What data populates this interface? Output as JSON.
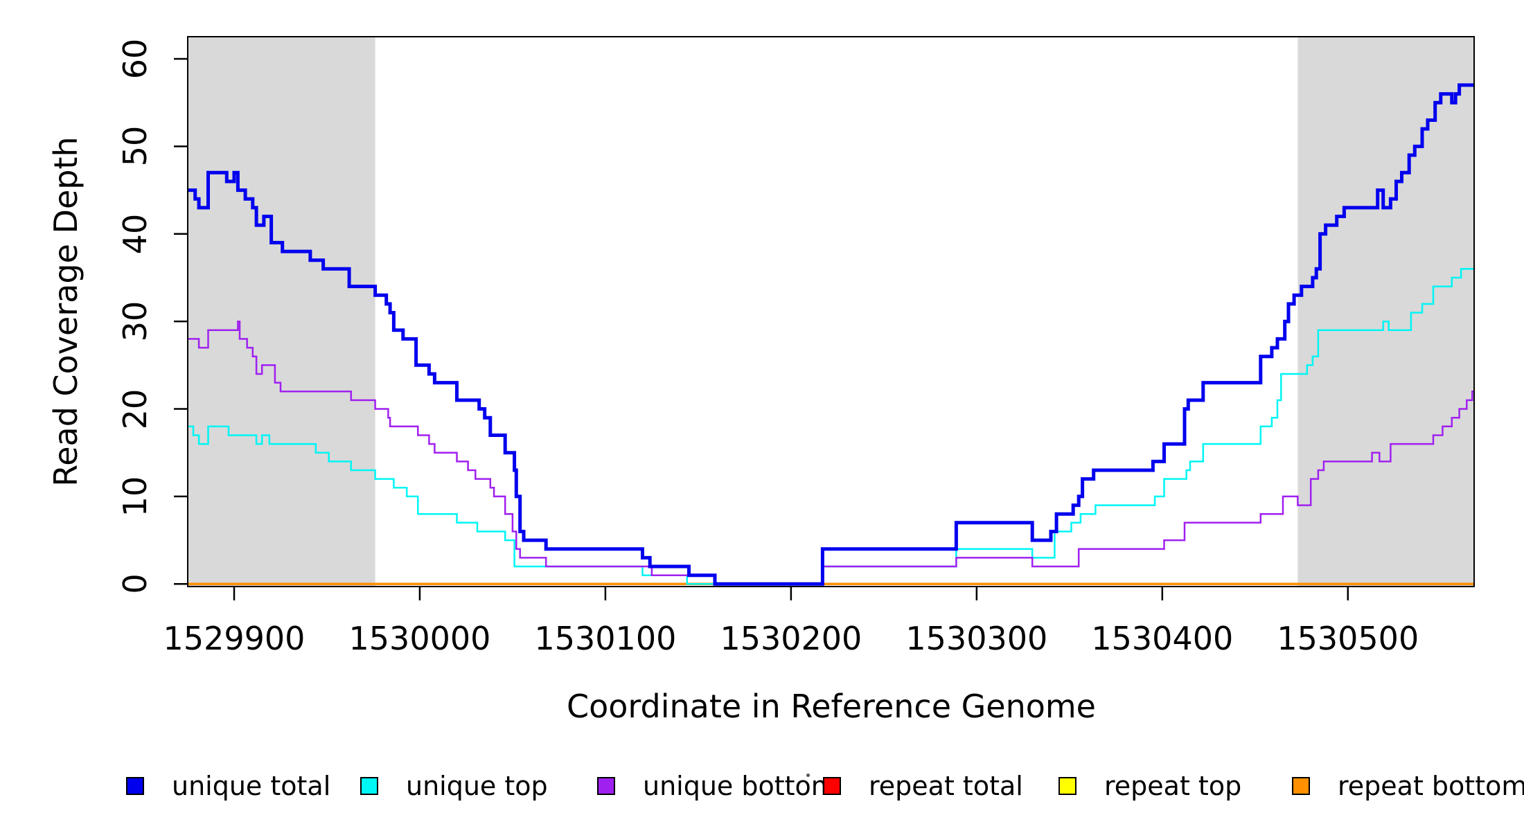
{
  "figure": {
    "ylabel": "Read Coverage Depth",
    "xlabel": "Coordinate in Reference Genome"
  },
  "legend": {
    "items": [
      {
        "label": "unique total",
        "color": "#0000EE"
      },
      {
        "label": "unique top",
        "color": "#00F5F5"
      },
      {
        "label": "unique bottom",
        "color": "#A020F0"
      },
      {
        "label": "repeat total",
        "color": "#FF0000"
      },
      {
        "label": "repeat top",
        "color": "#FFFF00"
      },
      {
        "label": "repeat bottom",
        "color": "#FF9000"
      }
    ]
  },
  "chart_data": {
    "type": "line",
    "subtype": "step-after",
    "title": "",
    "xlabel": "Coordinate in Reference Genome",
    "ylabel": "Read Coverage Depth",
    "xlim": [
      1529875,
      1530568
    ],
    "ylim": [
      0,
      62.5
    ],
    "xticks": [
      1529900,
      1530000,
      1530100,
      1530200,
      1530300,
      1530400,
      1530500
    ],
    "yticks": [
      0,
      10,
      20,
      30,
      40,
      50,
      60
    ],
    "grid": false,
    "legend_position": "bottom",
    "shaded_regions": [
      {
        "x0": 1529875,
        "x1": 1529976,
        "color": "#D9D9D9"
      },
      {
        "x0": 1530473,
        "x1": 1530568,
        "color": "#D9D9D9"
      }
    ],
    "draw_order": [
      "repeat top",
      "repeat total",
      "repeat bottom",
      "unique top",
      "unique bottom",
      "unique total"
    ],
    "series": [
      {
        "name": "unique total",
        "color": "#0000EE",
        "line_width": 5,
        "points": [
          [
            1529875,
            45
          ],
          [
            1529879,
            44
          ],
          [
            1529881,
            43
          ],
          [
            1529886,
            47
          ],
          [
            1529896,
            46
          ],
          [
            1529900,
            47
          ],
          [
            1529902,
            45
          ],
          [
            1529906,
            44
          ],
          [
            1529910,
            43
          ],
          [
            1529912,
            41
          ],
          [
            1529916,
            42
          ],
          [
            1529920,
            39
          ],
          [
            1529926,
            38
          ],
          [
            1529941,
            37
          ],
          [
            1529948,
            36
          ],
          [
            1529962,
            34
          ],
          [
            1529976,
            33
          ],
          [
            1529982,
            32
          ],
          [
            1529984,
            31
          ],
          [
            1529986,
            29
          ],
          [
            1529991,
            28
          ],
          [
            1529998,
            25
          ],
          [
            1530005,
            24
          ],
          [
            1530008,
            23
          ],
          [
            1530020,
            21
          ],
          [
            1530032,
            20
          ],
          [
            1530035,
            19
          ],
          [
            1530038,
            17
          ],
          [
            1530046,
            15
          ],
          [
            1530051,
            13
          ],
          [
            1530052,
            10
          ],
          [
            1530054,
            6
          ],
          [
            1530056,
            5
          ],
          [
            1530068,
            4
          ],
          [
            1530120,
            3
          ],
          [
            1530124,
            2
          ],
          [
            1530145,
            1
          ],
          [
            1530159,
            0
          ],
          [
            1530217,
            4
          ],
          [
            1530289,
            7
          ],
          [
            1530330,
            5
          ],
          [
            1530340,
            6
          ],
          [
            1530343,
            8
          ],
          [
            1530352,
            9
          ],
          [
            1530355,
            10
          ],
          [
            1530357,
            12
          ],
          [
            1530363,
            13
          ],
          [
            1530395,
            14
          ],
          [
            1530401,
            16
          ],
          [
            1530412,
            20
          ],
          [
            1530414,
            21
          ],
          [
            1530422,
            23
          ],
          [
            1530453,
            26
          ],
          [
            1530459,
            27
          ],
          [
            1530462,
            28
          ],
          [
            1530466,
            30
          ],
          [
            1530468,
            32
          ],
          [
            1530471,
            33
          ],
          [
            1530475,
            34
          ],
          [
            1530481,
            35
          ],
          [
            1530483,
            36
          ],
          [
            1530485,
            40
          ],
          [
            1530488,
            41
          ],
          [
            1530494,
            42
          ],
          [
            1530498,
            43
          ],
          [
            1530516,
            45
          ],
          [
            1530519,
            43
          ],
          [
            1530523,
            44
          ],
          [
            1530526,
            46
          ],
          [
            1530529,
            47
          ],
          [
            1530533,
            49
          ],
          [
            1530536,
            50
          ],
          [
            1530540,
            52
          ],
          [
            1530543,
            53
          ],
          [
            1530547,
            55
          ],
          [
            1530550,
            56
          ],
          [
            1530556,
            55
          ],
          [
            1530558,
            56
          ],
          [
            1530560,
            57
          ]
        ]
      },
      {
        "name": "unique top",
        "color": "#00F5F5",
        "line_width": 2.5,
        "points": [
          [
            1529875,
            18
          ],
          [
            1529878,
            17
          ],
          [
            1529881,
            16
          ],
          [
            1529886,
            18
          ],
          [
            1529897,
            17
          ],
          [
            1529912,
            16
          ],
          [
            1529915,
            17
          ],
          [
            1529919,
            16
          ],
          [
            1529944,
            15
          ],
          [
            1529951,
            14
          ],
          [
            1529963,
            13
          ],
          [
            1529976,
            12
          ],
          [
            1529986,
            11
          ],
          [
            1529993,
            10
          ],
          [
            1529999,
            8
          ],
          [
            1530020,
            7
          ],
          [
            1530031,
            6
          ],
          [
            1530046,
            5
          ],
          [
            1530051,
            2
          ],
          [
            1530120,
            1
          ],
          [
            1530144,
            0
          ],
          [
            1530217,
            2
          ],
          [
            1530289,
            4
          ],
          [
            1530330,
            3
          ],
          [
            1530342,
            6
          ],
          [
            1530351,
            7
          ],
          [
            1530356,
            8
          ],
          [
            1530364,
            9
          ],
          [
            1530396,
            10
          ],
          [
            1530401,
            12
          ],
          [
            1530413,
            13
          ],
          [
            1530415,
            14
          ],
          [
            1530422,
            16
          ],
          [
            1530453,
            18
          ],
          [
            1530459,
            19
          ],
          [
            1530462,
            21
          ],
          [
            1530464,
            24
          ],
          [
            1530478,
            25
          ],
          [
            1530481,
            26
          ],
          [
            1530484,
            29
          ],
          [
            1530519,
            30
          ],
          [
            1530522,
            29
          ],
          [
            1530534,
            31
          ],
          [
            1530540,
            32
          ],
          [
            1530546,
            34
          ],
          [
            1530556,
            35
          ],
          [
            1530561,
            36
          ]
        ]
      },
      {
        "name": "unique bottom",
        "color": "#A020F0",
        "line_width": 2.5,
        "points": [
          [
            1529875,
            28
          ],
          [
            1529881,
            27
          ],
          [
            1529886,
            29
          ],
          [
            1529902,
            30
          ],
          [
            1529903,
            28
          ],
          [
            1529907,
            27
          ],
          [
            1529910,
            26
          ],
          [
            1529912,
            24
          ],
          [
            1529915,
            25
          ],
          [
            1529922,
            23
          ],
          [
            1529925,
            22
          ],
          [
            1529963,
            21
          ],
          [
            1529976,
            20
          ],
          [
            1529983,
            19
          ],
          [
            1529984,
            18
          ],
          [
            1529999,
            17
          ],
          [
            1530005,
            16
          ],
          [
            1530008,
            15
          ],
          [
            1530020,
            14
          ],
          [
            1530026,
            13
          ],
          [
            1530030,
            12
          ],
          [
            1530038,
            11
          ],
          [
            1530040,
            10
          ],
          [
            1530046,
            8
          ],
          [
            1530050,
            6
          ],
          [
            1530052,
            4
          ],
          [
            1530054,
            3
          ],
          [
            1530068,
            2
          ],
          [
            1530125,
            1
          ],
          [
            1530159,
            0
          ],
          [
            1530217,
            2
          ],
          [
            1530289,
            3
          ],
          [
            1530330,
            2
          ],
          [
            1530355,
            4
          ],
          [
            1530401,
            5
          ],
          [
            1530412,
            7
          ],
          [
            1530453,
            8
          ],
          [
            1530465,
            10
          ],
          [
            1530473,
            9
          ],
          [
            1530480,
            12
          ],
          [
            1530484,
            13
          ],
          [
            1530487,
            14
          ],
          [
            1530513,
            15
          ],
          [
            1530517,
            14
          ],
          [
            1530523,
            16
          ],
          [
            1530546,
            17
          ],
          [
            1530551,
            18
          ],
          [
            1530556,
            19
          ],
          [
            1530560,
            20
          ],
          [
            1530564,
            21
          ],
          [
            1530567,
            22
          ]
        ]
      },
      {
        "name": "repeat total",
        "color": "#FF0000",
        "line_width": 2,
        "points": [
          [
            1529875,
            0
          ]
        ]
      },
      {
        "name": "repeat top",
        "color": "#FFFF00",
        "line_width": 2,
        "points": [
          [
            1529875,
            0
          ]
        ]
      },
      {
        "name": "repeat bottom",
        "color": "#FF9000",
        "line_width": 3.5,
        "points": [
          [
            1529875,
            0
          ]
        ]
      }
    ]
  }
}
